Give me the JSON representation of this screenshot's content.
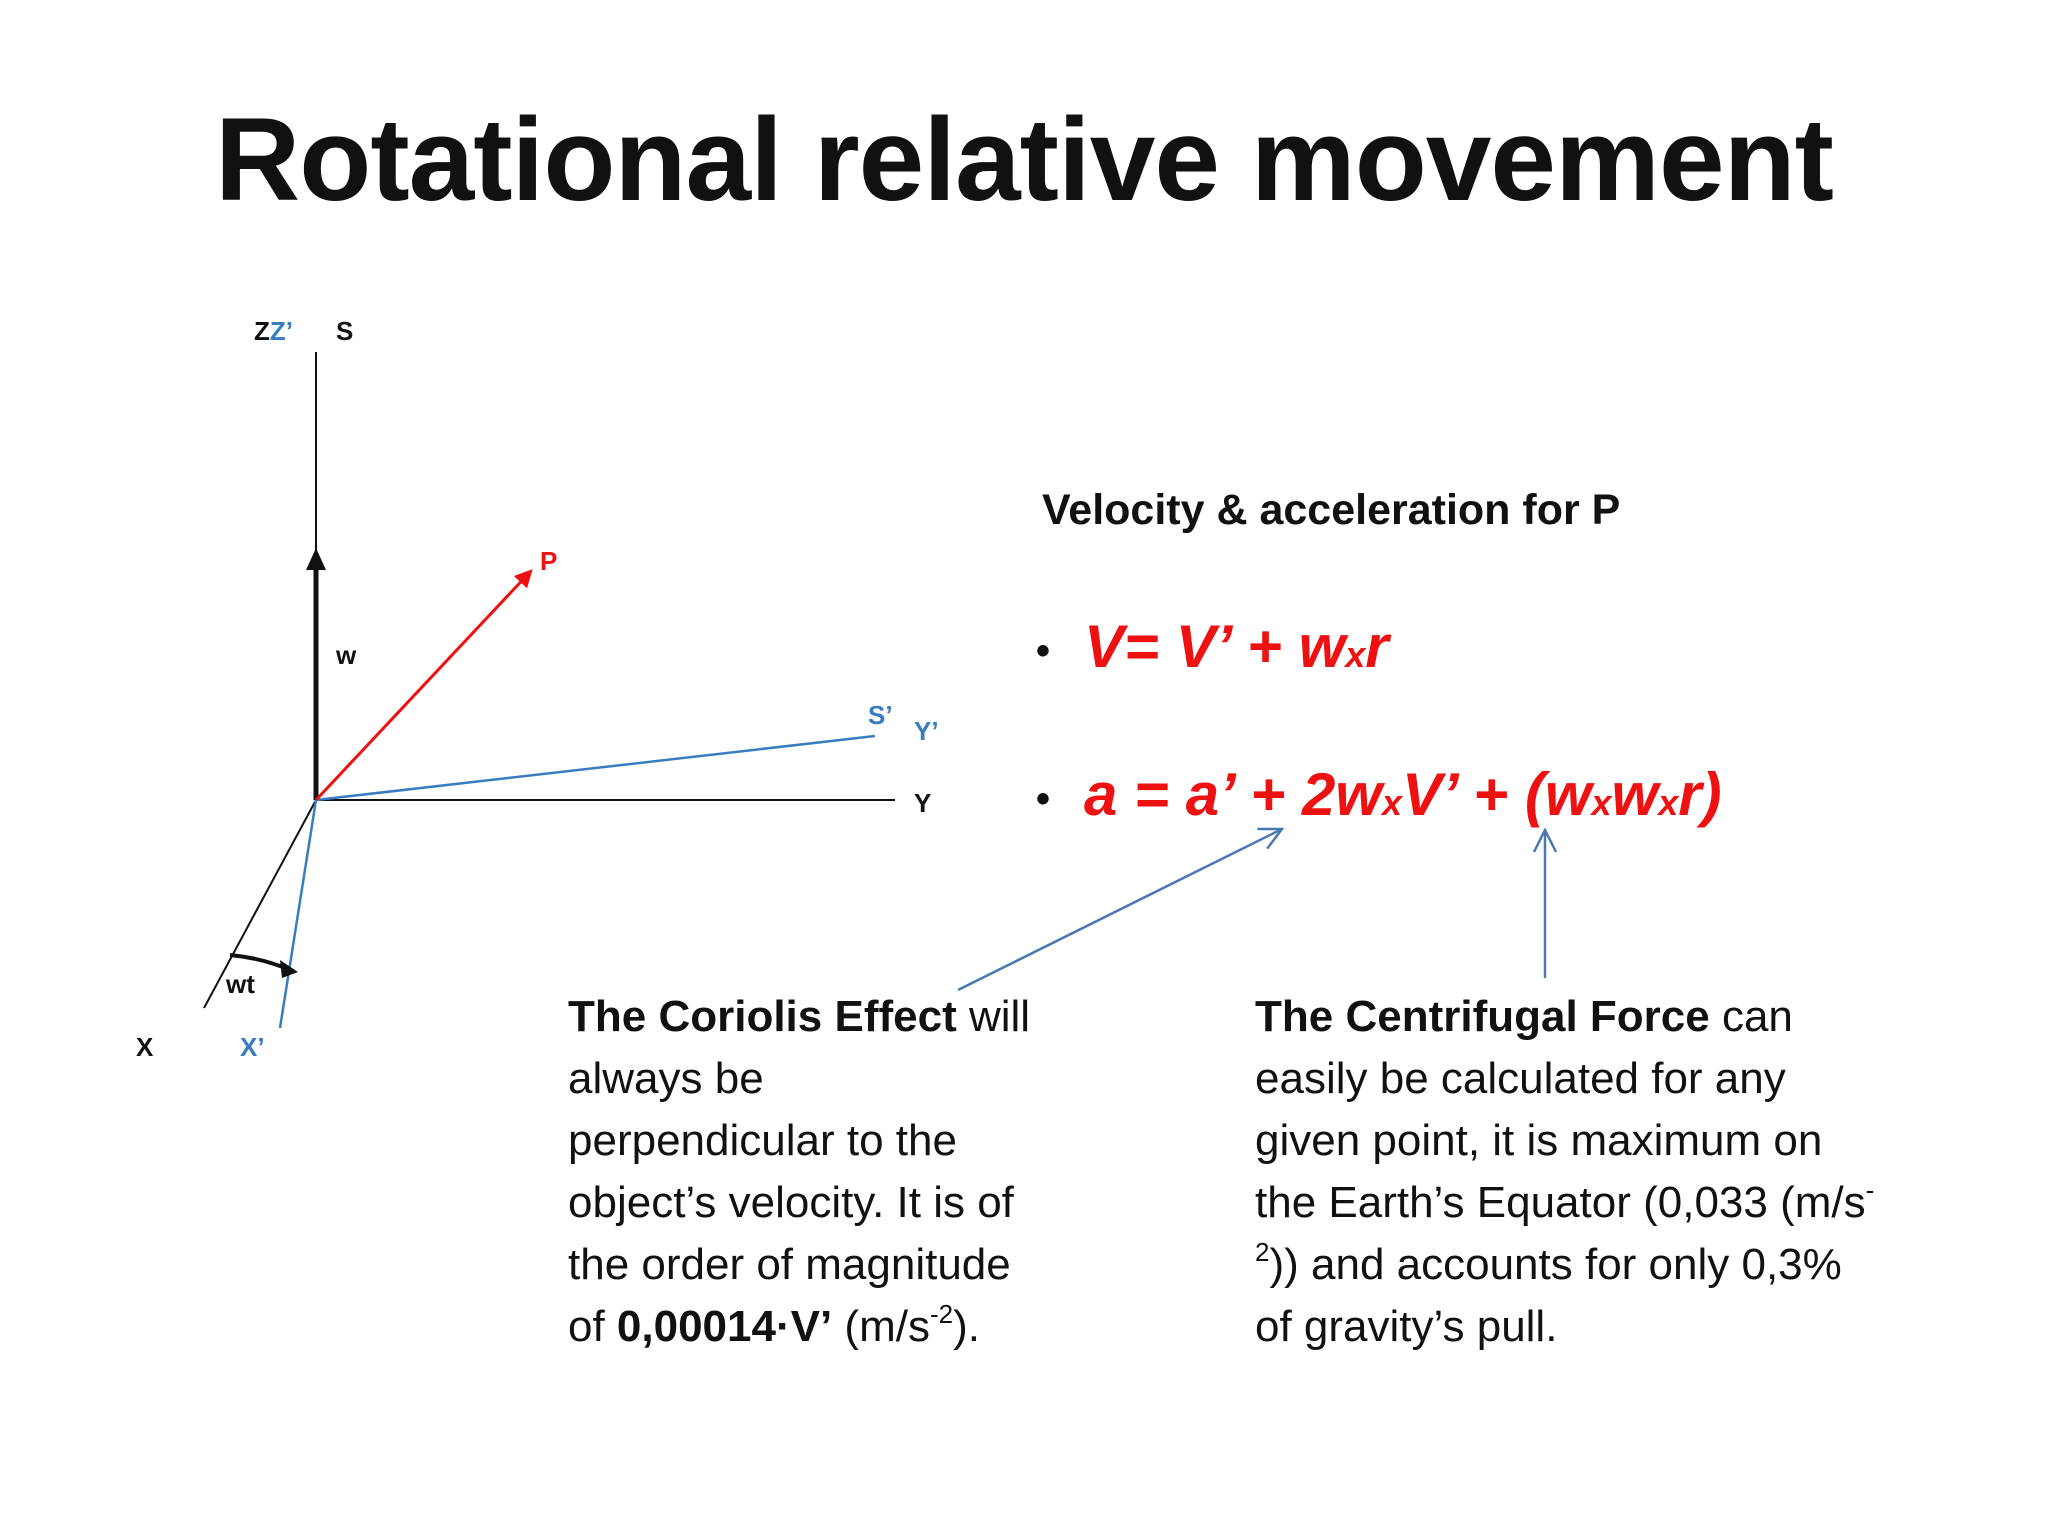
{
  "title": "Rotational relative movement",
  "diagram": {
    "labels": {
      "zz_prime_a": "Z",
      "zz_prime_b": "Z’",
      "s": "S",
      "p": "P",
      "w": "w",
      "s_prime": "S’",
      "y_prime": "Y’",
      "y": "Y",
      "wt": "wt",
      "x": "X",
      "x_prime": "X’"
    },
    "colors": {
      "black": "#111111",
      "red": "#ee1111",
      "blue": "#3a7cc0",
      "arrow_blue": "#4a78b0"
    }
  },
  "velocity": {
    "heading": "Velocity & acceleration for P",
    "bullet": "•",
    "v_formula": {
      "a": "V= V’ + w",
      "x": "x",
      "b": "r"
    },
    "a_formula": {
      "a": "a = a’ + 2w",
      "x1": "x",
      "b": "V’ + (w",
      "x2": "x",
      "c": "w",
      "x3": "x",
      "d": "r)"
    }
  },
  "coriolis": {
    "bold": "The Coriolis Effect",
    "text": " will always be perpendicular to the object’s velocity. It is of the order of magnitude of ",
    "value_bold": "0,00014·V’",
    "unit_a": " (m/s",
    "unit_sup": "-2",
    "unit_b": ")."
  },
  "centrifugal": {
    "bold": "The Centrifugal Force",
    "text_a": " can easily be calculated for any given point, it is maximum on the Earth’s Equator (0,033 (m/s",
    "sup": "-2",
    "text_b": ")) and accounts for only 0,3% of gravity’s pull."
  }
}
